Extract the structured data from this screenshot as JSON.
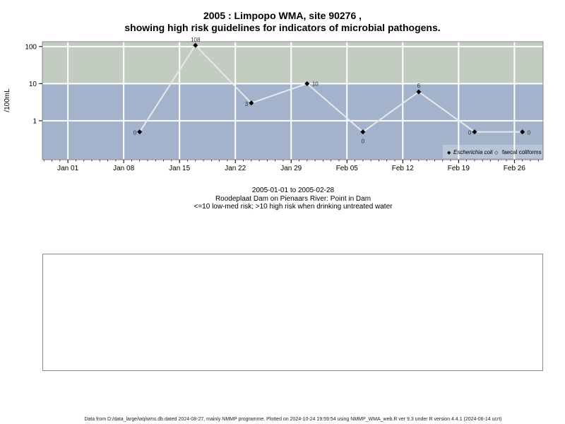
{
  "header": {
    "title_line1": "2005 : Limpopo WMA, site 90276 ,",
    "title_line2": "showing high risk guidelines for indicators of microbial pathogens."
  },
  "chart_data": {
    "type": "line",
    "ylabel": "/100mL",
    "yscale": "log",
    "y_ticks": [
      1,
      10,
      100
    ],
    "y_tick_labels": [
      "1",
      "10",
      "100"
    ],
    "x_ticks": [
      "2005-01-01",
      "2005-01-08",
      "2005-01-15",
      "2005-01-22",
      "2005-01-29",
      "2005-02-05",
      "2005-02-12",
      "2005-02-19",
      "2005-02-26"
    ],
    "x_tick_labels": [
      "Jan 01",
      "Jan 08",
      "Jan 15",
      "Jan 22",
      "Jan 29",
      "Feb 05",
      "Feb 12",
      "Feb 19",
      "Feb 26"
    ],
    "xlim": [
      "2005-01-01",
      "2005-02-28"
    ],
    "grid": true,
    "bands": [
      {
        "range": [
          0,
          10
        ],
        "color": "#a2b3cb"
      },
      {
        "range": [
          10,
          100
        ],
        "color": "#c3ccc0"
      }
    ],
    "series": [
      {
        "name": "Escherichia coli",
        "color": "#e8e8e8",
        "marker_color": "#000000",
        "points": [
          {
            "x": "2005-01-10",
            "y": 0.5,
            "label": "0"
          },
          {
            "x": "2005-01-17",
            "y": 108,
            "label": "108"
          },
          {
            "x": "2005-01-24",
            "y": 3,
            "label": "3"
          },
          {
            "x": "2005-01-31",
            "y": 10,
            "label": "10"
          },
          {
            "x": "2005-02-07",
            "y": 0.5,
            "label": "0"
          },
          {
            "x": "2005-02-14",
            "y": 6,
            "label": "6"
          },
          {
            "x": "2005-02-21",
            "y": 0.5,
            "label": "0"
          },
          {
            "x": "2005-02-27",
            "y": 0.5,
            "label": "0"
          }
        ]
      },
      {
        "name": "faecal coliforms",
        "points": []
      }
    ],
    "legend_position": "bottom-right"
  },
  "subtitle": {
    "line1": "2005-01-01 to 2005-02-28",
    "line2": "Roodeplaat Dam on Pienaars River: Point in Dam",
    "line3": "<=10 low-med risk; >10 high risk when drinking untreated water"
  },
  "footer": {
    "text": "Data from D:/data_large/wq/wms.db dated 2024-08-27, mainly NMMP programme. Plotted on 2024-10-24 19:59:54 using NMMP_WMA_web.R ver 9.3 under R version 4.4.1 (2024-06-14 ucrt)"
  }
}
